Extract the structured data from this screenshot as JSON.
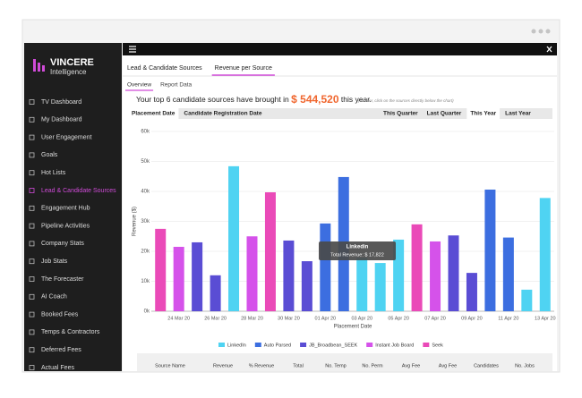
{
  "logo": {
    "brand": "VINCERE",
    "sub": "Intelligence"
  },
  "sidebar": {
    "items": [
      "TV Dashboard",
      "My Dashboard",
      "User Engagement",
      "Goals",
      "Hot Lists",
      "Lead & Candidate Sources",
      "Engagement Hub",
      "Pipeline Activities",
      "Company Stats",
      "Job Stats",
      "The Forecaster",
      "AI Coach",
      "Booked Fees",
      "Temps & Contractors",
      "Deferred Fees",
      "Actual Fees"
    ],
    "active_index": 5
  },
  "tabs": {
    "items": [
      "Lead & Candidate Sources",
      "Revenue per Source"
    ],
    "active_index": 1
  },
  "subtabs": {
    "items": [
      "Overview",
      "Report Data"
    ],
    "active_index": 0
  },
  "summary": {
    "prefix": "Your top 6 candidate sources have brought in",
    "amount": "$ 544,520",
    "suffix": "this year.",
    "hint": "(To filter, click on the sources directly below the chart)"
  },
  "date_filters": {
    "items": [
      "Placement Date",
      "Candidate Registration Date"
    ],
    "active_index": 0
  },
  "period_filters": {
    "items": [
      "This Quarter",
      "Last Quarter",
      "This Year",
      "Last Year"
    ],
    "active_index": 2
  },
  "chart_data": {
    "type": "bar",
    "y_label": "Revenue ($)",
    "x_label": "Placement Date",
    "categories": [
      null,
      "24 Mar 20",
      null,
      "26 Mar 20",
      null,
      "28 Mar 20",
      null,
      "30 Mar 20",
      null,
      "01 Apr 20",
      null,
      "03 Apr 20",
      null,
      "05 Apr 20",
      null,
      "07 Apr 20",
      null,
      "09 Apr 20",
      null,
      "11 Apr 20",
      null,
      "13 Apr 20"
    ],
    "series": [
      {
        "name": "LinkedIn",
        "color": "#4fd3f2",
        "values": [
          null,
          null,
          null,
          null,
          48400,
          null,
          null,
          null,
          null,
          null,
          null,
          17822,
          16100,
          23900,
          null,
          null,
          null,
          null,
          null,
          null,
          7200,
          37800
        ]
      },
      {
        "name": "Auto Parsed",
        "color": "#3c6ee0",
        "values": [
          null,
          null,
          null,
          null,
          null,
          null,
          null,
          null,
          null,
          29300,
          44800,
          null,
          null,
          null,
          null,
          null,
          null,
          null,
          40600,
          24600,
          null,
          null
        ]
      },
      {
        "name": "JB_Broadbean_SEEK",
        "color": "#5a4dd4",
        "values": [
          null,
          null,
          23000,
          12000,
          null,
          null,
          null,
          23600,
          16700,
          null,
          null,
          null,
          null,
          null,
          null,
          null,
          25300,
          12800,
          null,
          null,
          null,
          null
        ]
      },
      {
        "name": "Instant Job Board",
        "color": "#d552ea",
        "values": [
          null,
          21500,
          null,
          null,
          null,
          25000,
          null,
          null,
          null,
          null,
          null,
          null,
          null,
          null,
          null,
          23300,
          null,
          null,
          null,
          null,
          null,
          null
        ]
      },
      {
        "name": "Seek",
        "color": "#ea4ab8",
        "values": [
          27500,
          null,
          null,
          null,
          null,
          null,
          39700,
          null,
          null,
          null,
          null,
          null,
          null,
          null,
          29000,
          null,
          null,
          null,
          null,
          null,
          null,
          null
        ]
      }
    ],
    "ylim": [
      0,
      60000
    ],
    "yticks": [
      {
        "value": 0,
        "label": "0k"
      },
      {
        "value": 10000,
        "label": "10k"
      },
      {
        "value": 20000,
        "label": "20k"
      },
      {
        "value": 30000,
        "label": "30k"
      },
      {
        "value": 40000,
        "label": "40k"
      },
      {
        "value": 50000,
        "label": "50k"
      },
      {
        "value": 60000,
        "label": "60k"
      }
    ],
    "grid": true,
    "tooltip": {
      "title": "Linkedin",
      "text": "Total Revenue: $ 17,822"
    }
  },
  "table": {
    "headers": [
      "Source Name",
      "Revenue",
      "% Revenue",
      "Total",
      "No. Temp",
      "No. Perm",
      "Avg Fee",
      "Avg Fee",
      "Candidates",
      "No. Jobs"
    ]
  }
}
